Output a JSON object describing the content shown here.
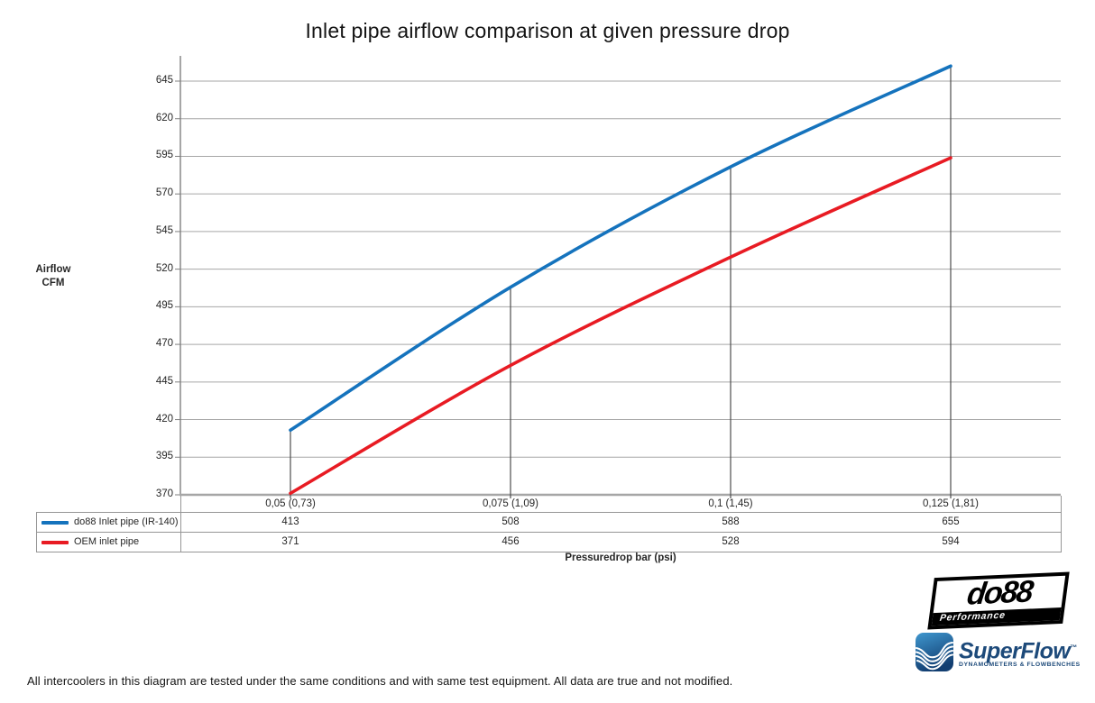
{
  "chart_data": {
    "type": "line",
    "title": "Inlet pipe airflow comparison at given pressure drop",
    "xlabel": "Pressuredrop bar (psi)",
    "ylabel_lines": [
      "Airflow",
      "CFM"
    ],
    "categories": [
      "0,05 (0,73)",
      "0,075 (1,09)",
      "0,1 (1,45)",
      "0,125 (1,81)"
    ],
    "series": [
      {
        "name": "do88 Inlet pipe (IR-140)",
        "color": "#1573bd",
        "values": [
          413,
          508,
          588,
          655
        ]
      },
      {
        "name": "OEM inlet pipe",
        "color": "#e81b23",
        "values": [
          371,
          456,
          528,
          594
        ]
      }
    ],
    "y_ticks": [
      370,
      395,
      420,
      445,
      470,
      495,
      520,
      545,
      570,
      595,
      620,
      645
    ],
    "ylim": [
      370,
      662
    ],
    "grid": "horizontal",
    "smoothed": true,
    "legend_position": "table-left",
    "has_category_droplines": true
  },
  "footer": {
    "caption": "All intercoolers in this diagram are tested under the same conditions and with same test equipment. All data are true and not modified."
  },
  "logos": {
    "do88": {
      "name": "do88",
      "subtitle": "Performance"
    },
    "superflow": {
      "name": "SuperFlow",
      "tm": "™",
      "subtitle": "DYNAMOMETERS & FLOWBENCHES",
      "color": "#1d4a7a"
    }
  },
  "colors": {
    "gridline": "#a6a6a6",
    "axis": "#a6a6a6",
    "drop_line": "#4d4d4d",
    "table_border": "#969696"
  }
}
